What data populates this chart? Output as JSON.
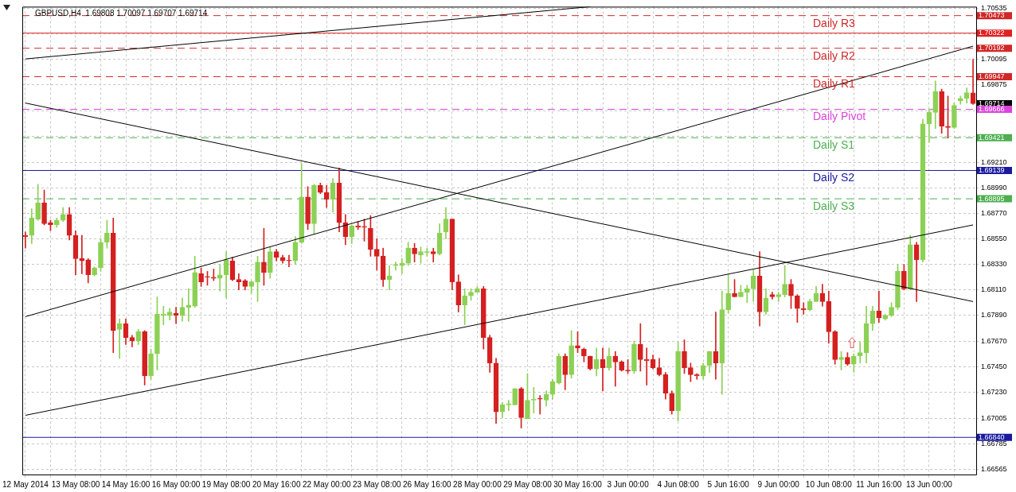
{
  "chart_data": {
    "type": "candlestick",
    "title": "GBPUSD,H4  1.69808 1.70097 1.69707 1.69714",
    "categories": [
      "12 May 2014",
      null,
      null,
      null,
      null,
      null,
      null,
      null,
      "13 May 08:00",
      null,
      null,
      null,
      null,
      null,
      null,
      null,
      "14 May 16:00",
      null,
      null,
      null,
      null,
      null,
      null,
      null,
      "16 May 00:00",
      null,
      null,
      null,
      null,
      null,
      null,
      null,
      "19 May 08:00",
      null,
      null,
      null,
      null,
      null,
      null,
      null,
      "20 May 16:00",
      null,
      null,
      null,
      null,
      null,
      null,
      null,
      "22 May 00:00",
      null,
      null,
      null,
      null,
      null,
      null,
      null,
      "23 May 08:00",
      null,
      null,
      null,
      null,
      null,
      null,
      null,
      "26 May 16:00",
      null,
      null,
      null,
      null,
      null,
      null,
      null,
      "28 May 00:00",
      null,
      null,
      null,
      null,
      null,
      null,
      null,
      "29 May 08:00",
      null,
      null,
      null,
      null,
      null,
      null,
      null,
      "30 May 16:00",
      null,
      null,
      null,
      null,
      null,
      null,
      null,
      "3 Jun 00:00",
      null,
      null,
      null,
      null,
      null,
      null,
      null,
      "4 Jun 08:00",
      null,
      null,
      null,
      null,
      null,
      null,
      null,
      "5 Jun 16:00",
      null,
      null,
      null,
      null,
      null,
      null,
      null,
      "9 Jun 00:00",
      null,
      null,
      null,
      null,
      null,
      null,
      null,
      "10 Jun 08:00",
      null,
      null,
      null,
      null,
      null,
      null,
      null,
      "11 Jun 16:00",
      null,
      null,
      null,
      null,
      null,
      null,
      null,
      "13 Jun 00:00",
      null,
      null,
      null,
      null,
      null,
      null,
      null
    ],
    "ohlc": [
      [
        1.6858,
        1.6861,
        1.6847,
        1.6857
      ],
      [
        1.6858,
        1.6881,
        1.6851,
        1.6873
      ],
      [
        1.6872,
        1.6902,
        1.6871,
        1.6886
      ],
      [
        1.6886,
        1.6897,
        1.6867,
        1.6868
      ],
      [
        1.6869,
        1.6871,
        1.6862,
        1.6867
      ],
      [
        1.6867,
        1.6873,
        1.6865,
        1.6871
      ],
      [
        1.6871,
        1.6882,
        1.687,
        1.6876
      ],
      [
        1.6876,
        1.6882,
        1.6854,
        1.6858
      ],
      [
        1.6858,
        1.6862,
        1.6824,
        1.6838
      ],
      [
        1.6838,
        1.6858,
        1.6825,
        1.6836
      ],
      [
        1.6837,
        1.6838,
        1.6817,
        1.6824
      ],
      [
        1.6824,
        1.6831,
        1.6823,
        1.683
      ],
      [
        1.683,
        1.6855,
        1.6827,
        1.6852
      ],
      [
        1.6852,
        1.6871,
        1.6847,
        1.686
      ],
      [
        1.686,
        1.6873,
        1.6757,
        1.6776
      ],
      [
        1.6777,
        1.6786,
        1.6752,
        1.6782
      ],
      [
        1.6782,
        1.6786,
        1.6764,
        1.677
      ],
      [
        1.677,
        1.6772,
        1.6762,
        1.6767
      ],
      [
        1.6767,
        1.6777,
        1.6764,
        1.6775
      ],
      [
        1.6775,
        1.6776,
        1.6729,
        1.6737
      ],
      [
        1.6737,
        1.676,
        1.6734,
        1.6756
      ],
      [
        1.6756,
        1.6805,
        1.6742,
        1.679
      ],
      [
        1.6789,
        1.6797,
        1.6781,
        1.679
      ],
      [
        1.6789,
        1.6795,
        1.6785,
        1.6792
      ],
      [
        1.6791,
        1.6796,
        1.6782,
        1.6789
      ],
      [
        1.6789,
        1.6804,
        1.6784,
        1.6796
      ],
      [
        1.6796,
        1.6812,
        1.6784,
        1.6798
      ],
      [
        1.6797,
        1.684,
        1.6796,
        1.6826
      ],
      [
        1.6825,
        1.683,
        1.6814,
        1.6818
      ],
      [
        1.6822,
        1.6827,
        1.6815,
        1.6822
      ],
      [
        1.6822,
        1.6829,
        1.6819,
        1.6821
      ],
      [
        1.6821,
        1.6833,
        1.681,
        1.6824
      ],
      [
        1.6824,
        1.6844,
        1.6804,
        1.6837
      ],
      [
        1.6836,
        1.6839,
        1.6819,
        1.682
      ],
      [
        1.682,
        1.6825,
        1.6811,
        1.6818
      ],
      [
        1.6819,
        1.682,
        1.6811,
        1.6814
      ],
      [
        1.6814,
        1.6819,
        1.6808,
        1.6818
      ],
      [
        1.6818,
        1.684,
        1.6801,
        1.6835
      ],
      [
        1.6835,
        1.6864,
        1.6815,
        1.6826
      ],
      [
        1.6826,
        1.6848,
        1.6821,
        1.6844
      ],
      [
        1.6844,
        1.6846,
        1.6836,
        1.6839
      ],
      [
        1.6839,
        1.6841,
        1.6834,
        1.6836
      ],
      [
        1.6836,
        1.6841,
        1.6831,
        1.6836
      ],
      [
        1.6836,
        1.6857,
        1.6833,
        1.6852
      ],
      [
        1.6852,
        1.692,
        1.6851,
        1.6891
      ],
      [
        1.6891,
        1.69,
        1.6863,
        1.6868
      ],
      [
        1.6868,
        1.6902,
        1.6859,
        1.6901
      ],
      [
        1.6901,
        1.6903,
        1.6894,
        1.6895
      ],
      [
        1.6895,
        1.6901,
        1.6882,
        1.6889
      ],
      [
        1.6889,
        1.6907,
        1.6878,
        1.6903
      ],
      [
        1.6903,
        1.6916,
        1.6861,
        1.6869
      ],
      [
        1.6869,
        1.6876,
        1.685,
        1.6857
      ],
      [
        1.6857,
        1.6867,
        1.6851,
        1.6866
      ],
      [
        1.6866,
        1.687,
        1.6863,
        1.6865
      ],
      [
        1.6865,
        1.6872,
        1.6853,
        1.6865
      ],
      [
        1.6864,
        1.6875,
        1.684,
        1.6846
      ],
      [
        1.6846,
        1.6855,
        1.6828,
        1.684
      ],
      [
        1.684,
        1.6847,
        1.6814,
        1.682
      ],
      [
        1.682,
        1.6832,
        1.6811,
        1.6823
      ],
      [
        1.6832,
        1.6835,
        1.6828,
        1.6833
      ],
      [
        1.6832,
        1.6838,
        1.6825,
        1.6834
      ],
      [
        1.6834,
        1.6852,
        1.6832,
        1.6847
      ],
      [
        1.6847,
        1.6851,
        1.6835,
        1.6842
      ],
      [
        1.6841,
        1.6848,
        1.6834,
        1.6844
      ],
      [
        1.6843,
        1.6847,
        1.684,
        1.6844
      ],
      [
        1.6844,
        1.6847,
        1.6835,
        1.6842
      ],
      [
        1.6842,
        1.6868,
        1.6841,
        1.686
      ],
      [
        1.6861,
        1.6882,
        1.6855,
        1.6872
      ],
      [
        1.6872,
        1.6872,
        1.6811,
        1.6818
      ],
      [
        1.6818,
        1.6824,
        1.6792,
        1.6798
      ],
      [
        1.6798,
        1.6812,
        1.6781,
        1.6806
      ],
      [
        1.6806,
        1.6812,
        1.6802,
        1.6809
      ],
      [
        1.6809,
        1.6814,
        1.6809,
        1.6812
      ],
      [
        1.6812,
        1.6814,
        1.676,
        1.677
      ],
      [
        1.677,
        1.6772,
        1.674,
        1.6748
      ],
      [
        1.6748,
        1.6752,
        1.6696,
        1.6706
      ],
      [
        1.6706,
        1.6714,
        1.6701,
        1.6712
      ],
      [
        1.6712,
        1.6716,
        1.6707,
        1.6713
      ],
      [
        1.6712,
        1.6726,
        1.6712,
        1.6726
      ],
      [
        1.6726,
        1.6727,
        1.6692,
        1.6701
      ],
      [
        1.67,
        1.6739,
        1.67,
        1.6716
      ],
      [
        1.6716,
        1.6727,
        1.6705,
        1.6717
      ],
      [
        1.6717,
        1.672,
        1.6704,
        1.6717
      ],
      [
        1.6716,
        1.6724,
        1.6711,
        1.6721
      ],
      [
        1.6721,
        1.6734,
        1.6717,
        1.6732
      ],
      [
        1.6731,
        1.6756,
        1.673,
        1.6754
      ],
      [
        1.6754,
        1.6756,
        1.6725,
        1.6738
      ],
      [
        1.6738,
        1.6776,
        1.6735,
        1.6763
      ],
      [
        1.6763,
        1.6775,
        1.6757,
        1.6761
      ],
      [
        1.676,
        1.6761,
        1.6749,
        1.6754
      ],
      [
        1.6754,
        1.6754,
        1.6742,
        1.6743
      ],
      [
        1.6743,
        1.6761,
        1.6737,
        1.6751
      ],
      [
        1.6751,
        1.6761,
        1.6724,
        1.6744
      ],
      [
        1.6744,
        1.6761,
        1.6742,
        1.6754
      ],
      [
        1.6754,
        1.6758,
        1.6728,
        1.6749
      ],
      [
        1.6749,
        1.675,
        1.6741,
        1.6742
      ],
      [
        1.6742,
        1.6751,
        1.6739,
        1.6741
      ],
      [
        1.6741,
        1.6767,
        1.6739,
        1.6764
      ],
      [
        1.6764,
        1.6782,
        1.6741,
        1.6751
      ],
      [
        1.6751,
        1.6761,
        1.6729,
        1.675
      ],
      [
        1.6751,
        1.6755,
        1.6743,
        1.6744
      ],
      [
        1.6744,
        1.6752,
        1.6737,
        1.6738
      ],
      [
        1.6738,
        1.674,
        1.6717,
        1.6722
      ],
      [
        1.6722,
        1.6724,
        1.6704,
        1.6707
      ],
      [
        1.6707,
        1.6766,
        1.6698,
        1.6758
      ],
      [
        1.6758,
        1.6768,
        1.6739,
        1.6744
      ],
      [
        1.6744,
        1.6748,
        1.6732,
        1.6738
      ],
      [
        1.6738,
        1.6739,
        1.6734,
        1.6737
      ],
      [
        1.6737,
        1.6748,
        1.6734,
        1.6746
      ],
      [
        1.6746,
        1.6758,
        1.674,
        1.6758
      ],
      [
        1.6758,
        1.6792,
        1.6734,
        1.6748
      ],
      [
        1.6748,
        1.681,
        1.6721,
        1.6794
      ],
      [
        1.6794,
        1.6824,
        1.6791,
        1.6808
      ],
      [
        1.6808,
        1.682,
        1.6805,
        1.6805
      ],
      [
        1.6805,
        1.6815,
        1.6805,
        1.6809
      ],
      [
        1.6809,
        1.6815,
        1.68,
        1.6812
      ],
      [
        1.6812,
        1.6828,
        1.6801,
        1.6823
      ],
      [
        1.6823,
        1.6844,
        1.678,
        1.6792
      ],
      [
        1.6792,
        1.6812,
        1.679,
        1.6804
      ],
      [
        1.6807,
        1.6809,
        1.6803,
        1.6805
      ],
      [
        1.6805,
        1.6809,
        1.6801,
        1.6807
      ],
      [
        1.6807,
        1.6832,
        1.6805,
        1.6816
      ],
      [
        1.6816,
        1.682,
        1.6795,
        1.6806
      ],
      [
        1.6806,
        1.6807,
        1.6783,
        1.6795
      ],
      [
        1.6795,
        1.68,
        1.679,
        1.6794
      ],
      [
        1.6794,
        1.6803,
        1.6793,
        1.6801
      ],
      [
        1.6801,
        1.6814,
        1.6801,
        1.6808
      ],
      [
        1.6808,
        1.6816,
        1.6797,
        1.6801
      ],
      [
        1.6801,
        1.681,
        1.6765,
        1.6775
      ],
      [
        1.6775,
        1.6776,
        1.6747,
        1.6751
      ],
      [
        1.6751,
        1.6758,
        1.6742,
        1.6753
      ],
      [
        1.6753,
        1.6757,
        1.6746,
        1.6747
      ],
      [
        1.6747,
        1.6756,
        1.674,
        1.6754
      ],
      [
        1.6754,
        1.6766,
        1.6748,
        1.6757
      ],
      [
        1.6757,
        1.6797,
        1.6748,
        1.6782
      ],
      [
        1.6782,
        1.6797,
        1.6776,
        1.6793
      ],
      [
        1.6793,
        1.681,
        1.6783,
        1.6787
      ],
      [
        1.6786,
        1.679,
        1.6785,
        1.6789
      ],
      [
        1.6789,
        1.68,
        1.6788,
        1.6796
      ],
      [
        1.6796,
        1.6833,
        1.6794,
        1.6827
      ],
      [
        1.6827,
        1.6833,
        1.6811,
        1.6812
      ],
      [
        1.6812,
        1.6858,
        1.6811,
        1.685
      ],
      [
        1.685,
        1.6852,
        1.6801,
        1.6837
      ],
      [
        1.6837,
        1.6958,
        1.6835,
        1.6954
      ],
      [
        1.6954,
        1.6967,
        1.6938,
        1.6964
      ],
      [
        1.6964,
        1.6991,
        1.695,
        1.6982
      ],
      [
        1.6982,
        1.6984,
        1.6946,
        1.6952
      ],
      [
        1.6952,
        1.6978,
        1.6942,
        1.6951
      ],
      [
        1.6951,
        1.6972,
        1.695,
        1.697
      ],
      [
        1.6974,
        1.6978,
        1.6971,
        1.6976
      ],
      [
        1.6976,
        1.6985,
        1.6972,
        1.6981
      ],
      [
        1.69808,
        1.70097,
        1.69707,
        1.69714
      ]
    ],
    "colors": [
      "#d42020",
      "#8cd155",
      "#8cd155",
      "#d42020",
      "#d42020",
      "#8cd155",
      "#8cd155",
      "#d42020",
      "#d42020",
      "#d42020",
      "#d42020",
      "#8cd155",
      "#8cd155",
      "#8cd155",
      "#d42020",
      "#8cd155",
      "#d42020",
      "#d42020",
      "#8cd155",
      "#d42020",
      "#8cd155",
      "#8cd155",
      "#8cd155",
      "#8cd155",
      "#d42020",
      "#8cd155",
      "#8cd155",
      "#8cd155",
      "#d42020",
      "#d42020",
      "#d42020",
      "#8cd155",
      "#8cd155",
      "#d42020",
      "#d42020",
      "#d42020",
      "#8cd155",
      "#8cd155",
      "#d42020",
      "#8cd155",
      "#d42020",
      "#d42020",
      "#d42020",
      "#8cd155",
      "#8cd155",
      "#d42020",
      "#8cd155",
      "#d42020",
      "#d42020",
      "#8cd155",
      "#d42020",
      "#d42020",
      "#8cd155",
      "#d42020",
      "#d42020",
      "#d42020",
      "#d42020",
      "#d42020",
      "#8cd155",
      "#8cd155",
      "#8cd155",
      "#8cd155",
      "#d42020",
      "#8cd155",
      "#8cd155",
      "#d42020",
      "#8cd155",
      "#8cd155",
      "#d42020",
      "#d42020",
      "#8cd155",
      "#8cd155",
      "#8cd155",
      "#d42020",
      "#d42020",
      "#d42020",
      "#8cd155",
      "#8cd155",
      "#8cd155",
      "#d42020",
      "#8cd155",
      "#8cd155",
      "#d42020",
      "#8cd155",
      "#8cd155",
      "#8cd155",
      "#d42020",
      "#8cd155",
      "#d42020",
      "#d42020",
      "#d42020",
      "#8cd155",
      "#d42020",
      "#8cd155",
      "#d42020",
      "#d42020",
      "#d42020",
      "#8cd155",
      "#d42020",
      "#d42020",
      "#d42020",
      "#d42020",
      "#d42020",
      "#d42020",
      "#8cd155",
      "#d42020",
      "#d42020",
      "#d42020",
      "#8cd155",
      "#8cd155",
      "#d42020",
      "#8cd155",
      "#8cd155",
      "#d42020",
      "#8cd155",
      "#8cd155",
      "#8cd155",
      "#d42020",
      "#8cd155",
      "#d42020",
      "#8cd155",
      "#8cd155",
      "#d42020",
      "#d42020",
      "#d42020",
      "#8cd155",
      "#8cd155",
      "#d42020",
      "#d42020",
      "#d42020",
      "#8cd155",
      "#d42020",
      "#8cd155",
      "#8cd155",
      "#8cd155",
      "#8cd155",
      "#d42020",
      "#8cd155",
      "#8cd155",
      "#8cd155",
      "#d42020",
      "#8cd155",
      "#d42020",
      "#8cd155",
      "#8cd155",
      "#8cd155",
      "#d42020",
      "#d42020",
      "#8cd155",
      "#8cd155",
      "#8cd155",
      "#d42020"
    ],
    "series": [
      {
        "type": "line",
        "color": "#000000",
        "values": [
          1.701,
          null,
          null,
          null,
          null,
          null,
          null,
          null,
          null,
          null,
          null,
          null,
          null,
          null,
          null,
          null,
          null,
          null,
          null,
          null,
          null,
          null,
          null,
          null,
          null,
          null,
          null,
          null,
          null,
          null,
          null,
          null,
          null,
          null,
          null,
          null,
          null,
          null,
          null,
          null,
          null,
          null,
          null,
          null,
          null,
          null,
          null,
          null,
          null,
          null,
          null,
          null,
          null,
          null,
          null,
          null,
          null,
          null,
          null,
          null,
          null,
          null,
          null,
          null,
          null,
          null,
          null,
          null,
          null,
          null,
          null,
          null,
          null,
          null,
          null,
          null,
          null,
          null,
          null,
          null,
          null,
          null,
          null,
          null,
          null,
          null,
          null,
          null,
          null,
          null,
          1.7055,
          null,
          null,
          null,
          null,
          null,
          null,
          null,
          null,
          null,
          null,
          null,
          null,
          null,
          null,
          null,
          null,
          null,
          null,
          null,
          null,
          null,
          null,
          null,
          null,
          null,
          null,
          null,
          null,
          null,
          null,
          null,
          null,
          null,
          null,
          null,
          null,
          null,
          null,
          null,
          null,
          null,
          null,
          null,
          null,
          null,
          null,
          null,
          null,
          null,
          null,
          null,
          null,
          null,
          null,
          null,
          null,
          null,
          null,
          null,
          null,
          null
        ]
      },
      {
        "type": "line",
        "color": "#000000",
        "values": [
          1.6972,
          null,
          null,
          null,
          null,
          null,
          null,
          null,
          null,
          null,
          null,
          null,
          null,
          null,
          null,
          null,
          null,
          null,
          null,
          null,
          null,
          null,
          null,
          null,
          null,
          null,
          null,
          null,
          null,
          null,
          null,
          null,
          null,
          null,
          null,
          null,
          null,
          null,
          null,
          null,
          null,
          null,
          null,
          null,
          null,
          null,
          null,
          null,
          null,
          null,
          null,
          null,
          null,
          null,
          null,
          null,
          null,
          null,
          null,
          null,
          null,
          null,
          null,
          null,
          null,
          null,
          null,
          null,
          null,
          null,
          null,
          null,
          null,
          null,
          null,
          null,
          null,
          null,
          null,
          null,
          null,
          null,
          null,
          null,
          null,
          null,
          null,
          null,
          null,
          null,
          null,
          null,
          null,
          null,
          null,
          null,
          null,
          null,
          null,
          null,
          null,
          null,
          null,
          null,
          null,
          null,
          null,
          null,
          null,
          null,
          null,
          null,
          null,
          null,
          null,
          null,
          null,
          null,
          null,
          null,
          null,
          null,
          null,
          null,
          null,
          null,
          null,
          null,
          null,
          null,
          null,
          null,
          null,
          null,
          null,
          null,
          null,
          null,
          null,
          null,
          null,
          null,
          null,
          null,
          null,
          null,
          null,
          null,
          null,
          null,
          null,
          1.6801
        ]
      },
      {
        "type": "line",
        "color": "#000000",
        "values": [
          1.6788,
          null,
          null,
          null,
          null,
          null,
          null,
          null,
          null,
          null,
          null,
          null,
          null,
          null,
          null,
          null,
          null,
          null,
          null,
          null,
          null,
          null,
          null,
          null,
          null,
          null,
          null,
          null,
          null,
          null,
          null,
          null,
          null,
          null,
          null,
          null,
          null,
          null,
          null,
          null,
          null,
          null,
          null,
          null,
          null,
          null,
          null,
          null,
          null,
          null,
          null,
          null,
          null,
          null,
          null,
          null,
          null,
          null,
          null,
          null,
          null,
          null,
          null,
          null,
          null,
          null,
          null,
          null,
          null,
          null,
          null,
          null,
          null,
          null,
          null,
          null,
          null,
          null,
          null,
          null,
          null,
          null,
          null,
          null,
          null,
          null,
          null,
          null,
          null,
          null,
          null,
          null,
          null,
          null,
          null,
          null,
          null,
          null,
          null,
          null,
          null,
          null,
          null,
          null,
          null,
          null,
          null,
          null,
          null,
          null,
          null,
          null,
          null,
          null,
          null,
          null,
          null,
          null,
          null,
          null,
          null,
          null,
          null,
          null,
          null,
          null,
          null,
          null,
          null,
          null,
          null,
          null,
          null,
          null,
          null,
          null,
          null,
          null,
          null,
          null,
          null,
          null,
          null,
          null,
          null,
          null,
          null,
          null,
          null,
          null,
          null,
          1.7021
        ]
      },
      {
        "type": "line",
        "color": "#000000",
        "values": [
          1.6703,
          null,
          null,
          null,
          null,
          null,
          null,
          null,
          null,
          null,
          null,
          null,
          null,
          null,
          null,
          null,
          null,
          null,
          null,
          null,
          null,
          null,
          null,
          null,
          null,
          null,
          null,
          null,
          null,
          null,
          null,
          null,
          null,
          null,
          null,
          null,
          null,
          null,
          null,
          null,
          null,
          null,
          null,
          null,
          null,
          null,
          null,
          null,
          null,
          null,
          null,
          null,
          null,
          null,
          null,
          null,
          null,
          null,
          null,
          null,
          null,
          null,
          null,
          null,
          null,
          null,
          null,
          null,
          null,
          null,
          null,
          null,
          null,
          null,
          null,
          null,
          null,
          null,
          null,
          null,
          null,
          null,
          null,
          null,
          null,
          null,
          null,
          null,
          null,
          null,
          null,
          null,
          null,
          null,
          null,
          null,
          null,
          null,
          null,
          null,
          null,
          null,
          null,
          null,
          null,
          null,
          null,
          null,
          null,
          null,
          null,
          null,
          null,
          null,
          null,
          null,
          null,
          null,
          null,
          null,
          null,
          null,
          null,
          null,
          null,
          null,
          null,
          null,
          null,
          null,
          null,
          null,
          null,
          null,
          null,
          null,
          null,
          null,
          null,
          null,
          null,
          null,
          null,
          null,
          null,
          null,
          null,
          null,
          null,
          null,
          null,
          1.6867
        ]
      }
    ],
    "ref_lines": [
      {
        "axis": "y",
        "value": 1.70473,
        "label": "Daily R3",
        "color": "#d02828",
        "line_style": "dashed"
      },
      {
        "axis": "y",
        "value": 1.70322,
        "color": "#e02020",
        "line_style": "solid"
      },
      {
        "axis": "y",
        "value": 1.70192,
        "label": "Daily R2",
        "color": "#d02828",
        "line_style": "dashed"
      },
      {
        "axis": "y",
        "value": 1.69947,
        "label": "Daily R1",
        "color": "#d02828",
        "line_style": "dashed"
      },
      {
        "axis": "y",
        "value": 1.69666,
        "label": "Daily Pivot",
        "color": "#dd44dd",
        "line_style": "dashed"
      },
      {
        "axis": "y",
        "value": 1.69421,
        "label": "Daily S1",
        "color": "#4caf50",
        "line_style": "dashed"
      },
      {
        "axis": "y",
        "value": 1.69139,
        "label": "Daily S2",
        "color": "#1a1aa0",
        "line_style": "solid"
      },
      {
        "axis": "y",
        "value": 1.68895,
        "label": "Daily S3",
        "color": "#4caf50",
        "line_style": "dashed"
      },
      {
        "axis": "y",
        "value": 1.6684,
        "color": "#1a1aa0",
        "line_style": "solid"
      }
    ],
    "annotations": [
      "1.70473",
      "1.70322",
      "1.70192",
      "1.69947",
      "1.69666",
      "1.69421",
      "1.69139",
      "1.68895",
      "1.66840",
      "1.69714"
    ],
    "ylim": [
      1.6652,
      1.7055
    ],
    "yticks": [
      1.70535,
      {
        "value": 1.70315,
        "label": null
      },
      1.70095,
      1.69875,
      {
        "value": 1.69655,
        "label": null
      },
      {
        "value": 1.69435,
        "label": null
      },
      {
        "value": 1.6921,
        "label": "1.69210"
      },
      {
        "value": 1.6899,
        "label": "1.68990"
      },
      {
        "value": 1.6877,
        "label": "1.68770"
      },
      {
        "value": 1.6855,
        "label": "1.68550"
      },
      {
        "value": 1.6833,
        "label": "1.68330"
      },
      {
        "value": 1.6811,
        "label": "1.68110"
      },
      {
        "value": 1.6789,
        "label": "1.67890"
      },
      {
        "value": 1.6767,
        "label": "1.67670"
      },
      {
        "value": 1.6745,
        "label": "1.67450"
      },
      {
        "value": 1.6723,
        "label": "1.67230"
      },
      1.67005,
      1.66785,
      1.66565
    ],
    "grid": true,
    "marker": "none"
  }
}
